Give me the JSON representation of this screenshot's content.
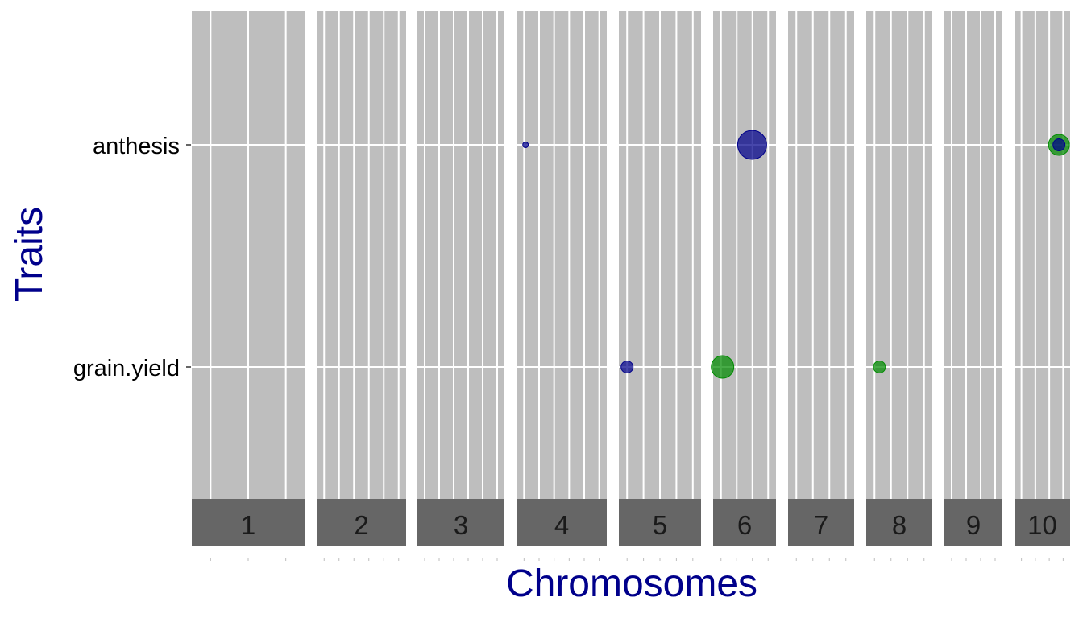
{
  "chart_data": {
    "type": "scatter",
    "title": "",
    "xlabel": "Chromosomes",
    "ylabel": "Traits",
    "axis_title_color": "#00008b",
    "panel_background": "#bebebe",
    "strip_background": "#666666",
    "facet_variable": "chromosome",
    "facets": [
      "1",
      "2",
      "3",
      "4",
      "5",
      "6",
      "7",
      "8",
      "9",
      "10"
    ],
    "traits": [
      "grain.yield",
      "anthesis"
    ],
    "grid": true,
    "legend": "none",
    "series": [
      {
        "color": "#00008b",
        "points": [
          {
            "chromosome": "4",
            "position_fraction": 0.1,
            "trait": "anthesis",
            "size": 1
          },
          {
            "chromosome": "6",
            "position_fraction": 0.62,
            "trait": "anthesis",
            "size": 5
          },
          {
            "chromosome": "5",
            "position_fraction": 0.1,
            "trait": "grain.yield",
            "size": 2
          },
          {
            "chromosome": "10",
            "position_fraction": 0.8,
            "trait": "anthesis",
            "size": 2
          }
        ]
      },
      {
        "color": "#008b00",
        "points": [
          {
            "chromosome": "6",
            "position_fraction": 0.15,
            "trait": "grain.yield",
            "size": 4
          },
          {
            "chromosome": "8",
            "position_fraction": 0.2,
            "trait": "grain.yield",
            "size": 2
          },
          {
            "chromosome": "10",
            "position_fraction": 0.8,
            "trait": "anthesis",
            "size": 3
          }
        ]
      }
    ]
  }
}
